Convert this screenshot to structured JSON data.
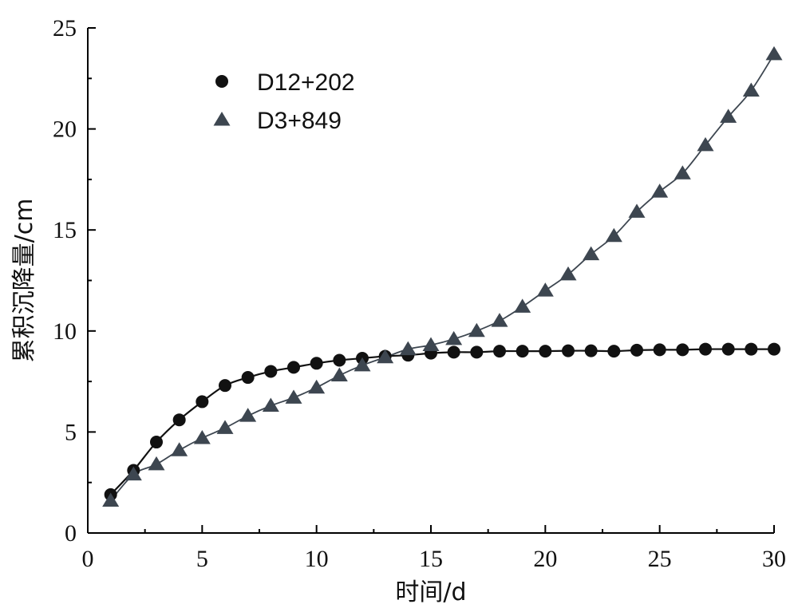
{
  "chart_data": {
    "type": "scatter",
    "xlabel": "时间/d",
    "ylabel": "累积沉降量/cm",
    "xlim": [
      0,
      30
    ],
    "ylim": [
      0,
      25
    ],
    "xticks": [
      0,
      5,
      10,
      15,
      20,
      25,
      30
    ],
    "yticks": [
      0,
      5,
      10,
      15,
      20,
      25
    ],
    "grid": false,
    "legend_position": "top-left",
    "series": [
      {
        "name": "D12+202",
        "marker": "circle",
        "color": "#111111",
        "fit_line": true,
        "x": [
          1,
          2,
          3,
          4,
          5,
          6,
          7,
          8,
          9,
          10,
          11,
          12,
          13,
          14,
          15,
          16,
          17,
          18,
          19,
          20,
          21,
          22,
          23,
          24,
          25,
          26,
          27,
          28,
          29,
          30
        ],
        "y": [
          1.9,
          3.1,
          4.5,
          5.6,
          6.5,
          7.3,
          7.7,
          8.0,
          8.2,
          8.4,
          8.55,
          8.65,
          8.75,
          8.8,
          8.9,
          8.95,
          8.95,
          9.0,
          9.0,
          9.0,
          9.02,
          9.02,
          9.0,
          9.05,
          9.07,
          9.07,
          9.1,
          9.1,
          9.1,
          9.1
        ]
      },
      {
        "name": "D3+849",
        "marker": "triangle",
        "color": "#3d4650",
        "fit_line": true,
        "x": [
          1,
          2,
          3,
          4,
          5,
          6,
          7,
          8,
          9,
          10,
          11,
          12,
          13,
          14,
          15,
          16,
          17,
          18,
          19,
          20,
          21,
          22,
          23,
          24,
          25,
          26,
          27,
          28,
          29,
          30
        ],
        "y": [
          1.6,
          2.9,
          3.4,
          4.1,
          4.7,
          5.2,
          5.8,
          6.3,
          6.7,
          7.2,
          7.8,
          8.3,
          8.7,
          9.1,
          9.3,
          9.6,
          10.0,
          10.5,
          11.2,
          12.0,
          12.8,
          13.8,
          14.7,
          15.9,
          16.9,
          17.8,
          19.2,
          20.6,
          21.9,
          23.7
        ]
      }
    ]
  }
}
